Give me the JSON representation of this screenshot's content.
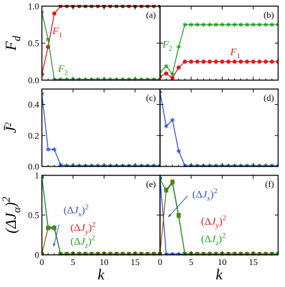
{
  "colors": {
    "red": "#e8141a",
    "green": "#1e9e1e",
    "blue": "#2a4fe0",
    "olive": "#8a6414"
  },
  "chart_data": [
    {
      "type": "line",
      "panel_label": "(a)",
      "ylabel": "F_d",
      "xlabel": "",
      "xlim": [
        0,
        19
      ],
      "ylim": [
        0,
        1.0
      ],
      "xticks": [
        0,
        5,
        10,
        15
      ],
      "yticks": [
        0.0,
        0.5,
        1.0
      ],
      "ytick_labels": [
        "0.0",
        "0.5",
        "1.0"
      ],
      "x": [
        0,
        1,
        2,
        3,
        4,
        5,
        6,
        7,
        8,
        9,
        10,
        11,
        12,
        13,
        14,
        15,
        16,
        17,
        18,
        19
      ],
      "series": [
        {
          "label_text": "F_1",
          "color": "red",
          "marker": "circle",
          "values": [
            0.08,
            0.45,
            0.9,
            1,
            1,
            1,
            1,
            1,
            1,
            1,
            1,
            1,
            1,
            1,
            1,
            1,
            1,
            1,
            1,
            1
          ]
        },
        {
          "label_text": "F_2",
          "color": "green",
          "marker": "star",
          "values": [
            0.92,
            0.55,
            0.01,
            0.01,
            0.01,
            0.01,
            0.01,
            0.01,
            0.01,
            0.01,
            0.01,
            0.01,
            0.01,
            0.01,
            0.01,
            0.01,
            0.01,
            0.01,
            0.01,
            0.01
          ]
        }
      ],
      "annotations": [
        {
          "text": "F_1",
          "color": "red",
          "x": 1.7,
          "y": 0.62
        },
        {
          "text": "F_2",
          "color": "green",
          "x": 2.6,
          "y": 0.11
        }
      ]
    },
    {
      "type": "line",
      "panel_label": "(b)",
      "ylabel": "",
      "xlabel": "",
      "xlim": [
        0,
        19
      ],
      "ylim": [
        0,
        1.0
      ],
      "xticks": [
        0,
        5,
        10,
        15
      ],
      "yticks": [
        0.0,
        0.5,
        1.0
      ],
      "ytick_labels": [],
      "x": [
        0,
        1,
        2,
        3,
        4,
        5,
        6,
        7,
        8,
        9,
        10,
        11,
        12,
        13,
        14,
        15,
        16,
        17,
        18,
        19
      ],
      "series": [
        {
          "label_text": "F_1",
          "color": "red",
          "marker": "circle",
          "values": [
            0.05,
            0.09,
            0.03,
            0.17,
            0.25,
            0.25,
            0.25,
            0.25,
            0.25,
            0.25,
            0.25,
            0.25,
            0.25,
            0.25,
            0.25,
            0.25,
            0.25,
            0.25,
            0.25,
            0.25
          ]
        },
        {
          "label_text": "F_2",
          "color": "green",
          "marker": "star",
          "values": [
            0.11,
            0.19,
            0.08,
            0.45,
            0.75,
            0.75,
            0.75,
            0.75,
            0.75,
            0.75,
            0.75,
            0.75,
            0.75,
            0.75,
            0.75,
            0.75,
            0.75,
            0.75,
            0.75,
            0.75
          ]
        }
      ],
      "annotations": [
        {
          "text": "F_2",
          "color": "green",
          "x": 0.4,
          "y": 0.44
        },
        {
          "text": "F_1",
          "color": "red",
          "x": 11.3,
          "y": 0.34
        }
      ]
    },
    {
      "type": "line",
      "panel_label": "(c)",
      "ylabel": "J̄²",
      "xlabel": "",
      "xlim": [
        0,
        19
      ],
      "ylim": [
        0,
        0.5
      ],
      "xticks": [
        0,
        5,
        10,
        15
      ],
      "yticks": [
        0.0,
        0.2,
        0.4
      ],
      "ytick_labels": [
        "0.0",
        "0.2",
        "0.4"
      ],
      "x": [
        0,
        1,
        2,
        3,
        4,
        5,
        6,
        7,
        8,
        9,
        10,
        11,
        12,
        13,
        14,
        15,
        16,
        17,
        18,
        19
      ],
      "series": [
        {
          "color": "blue",
          "marker": "star",
          "values": [
            0.47,
            0.11,
            0.11,
            0.01,
            0.005,
            0.005,
            0.005,
            0.005,
            0.005,
            0.005,
            0.005,
            0.005,
            0.005,
            0.005,
            0.005,
            0.005,
            0.005,
            0.005,
            0.005,
            0.005
          ]
        }
      ],
      "annotations": []
    },
    {
      "type": "line",
      "panel_label": "(d)",
      "ylabel": "",
      "xlabel": "",
      "xlim": [
        0,
        19
      ],
      "ylim": [
        0,
        0.5
      ],
      "xticks": [
        0,
        5,
        10,
        15
      ],
      "yticks": [
        0.0,
        0.2,
        0.4
      ],
      "ytick_labels": [],
      "x": [
        0,
        1,
        2,
        3,
        4,
        5,
        6,
        7,
        8,
        9,
        10,
        11,
        12,
        13,
        14,
        15,
        16,
        17,
        18,
        19
      ],
      "series": [
        {
          "color": "blue",
          "marker": "star",
          "values": [
            0.48,
            0.26,
            0.3,
            0.1,
            0.005,
            0.005,
            0.005,
            0.005,
            0.005,
            0.005,
            0.005,
            0.005,
            0.005,
            0.005,
            0.005,
            0.005,
            0.005,
            0.005,
            0.005,
            0.005
          ]
        }
      ],
      "annotations": []
    },
    {
      "type": "line",
      "panel_label": "(e)",
      "ylabel": "(ΔJ_α)²",
      "xlabel": "k",
      "xlim": [
        0,
        19
      ],
      "ylim": [
        0,
        1.0
      ],
      "xticks": [
        0,
        5,
        10,
        15
      ],
      "yticks": [
        0,
        0.5,
        1
      ],
      "ytick_labels": [
        "0",
        "0.5",
        "1"
      ],
      "x": [
        0,
        1,
        2,
        3,
        4,
        5,
        6,
        7,
        8,
        9,
        10,
        11,
        12,
        13,
        14,
        15,
        16,
        17,
        18,
        19
      ],
      "series": [
        {
          "label_text": "(ΔJ_x)²",
          "color": "blue",
          "marker": "star",
          "values": [
            0.98,
            0.33,
            0.33,
            0.01,
            0.01,
            0.01,
            0.01,
            0.01,
            0.01,
            0.01,
            0.01,
            0.01,
            0.01,
            0.01,
            0.01,
            0.01,
            0.01,
            0.01,
            0.01,
            0.01
          ]
        },
        {
          "label_text": "(ΔJ_y)²",
          "color": "olive",
          "marker": "square",
          "values": [
            0.01,
            0.34,
            0.34,
            0.01,
            0.01,
            0.01,
            0.01,
            0.01,
            0.01,
            0.01,
            0.01,
            0.01,
            0.01,
            0.01,
            0.01,
            0.01,
            0.01,
            0.01,
            0.01,
            0.01
          ]
        },
        {
          "label_text": "(ΔJ_z)²",
          "color": "green",
          "marker": "star",
          "values": [
            0.97,
            0.35,
            0.35,
            0.01,
            0.01,
            0.01,
            0.01,
            0.01,
            0.01,
            0.01,
            0.01,
            0.01,
            0.01,
            0.01,
            0.01,
            0.01,
            0.01,
            0.01,
            0.01,
            0.01
          ]
        }
      ],
      "annotations": [
        {
          "text": "(ΔJ_x)²",
          "color": "blue",
          "x": 3.5,
          "y": 0.52
        },
        {
          "text": "(ΔJ_y)²",
          "color": "red",
          "x": 4.6,
          "y": 0.3
        },
        {
          "text": "(ΔJ_z)²",
          "color": "green",
          "x": 4.6,
          "y": 0.13
        }
      ]
    },
    {
      "type": "line",
      "panel_label": "(f)",
      "ylabel": "",
      "xlabel": "k",
      "xlim": [
        0,
        19
      ],
      "ylim": [
        0,
        1.0
      ],
      "xticks": [
        0,
        5,
        10,
        15
      ],
      "yticks": [
        0,
        0.5,
        1
      ],
      "ytick_labels": [],
      "x": [
        0,
        1,
        2,
        3,
        4,
        5,
        6,
        7,
        8,
        9,
        10,
        11,
        12,
        13,
        14,
        15,
        16,
        17,
        18,
        19
      ],
      "series": [
        {
          "label_text": "(ΔJ_x)²",
          "color": "blue",
          "marker": "star",
          "values": [
            0.97,
            0.01,
            0.01,
            0.01,
            0.01,
            0.01,
            0.01,
            0.01,
            0.01,
            0.01,
            0.01,
            0.01,
            0.01,
            0.01,
            0.01,
            0.01,
            0.01,
            0.01,
            0.01,
            0.01
          ]
        },
        {
          "label_text": "(ΔJ_y)²",
          "color": "olive",
          "marker": "square",
          "values": [
            0.01,
            0.82,
            0.92,
            0.5,
            0.01,
            0.01,
            0.01,
            0.01,
            0.01,
            0.01,
            0.01,
            0.01,
            0.01,
            0.01,
            0.01,
            0.01,
            0.01,
            0.01,
            0.01,
            0.01
          ]
        },
        {
          "label_text": "(ΔJ_z)²",
          "color": "green",
          "marker": "star",
          "values": [
            0.96,
            0.8,
            0.9,
            0.48,
            0.01,
            0.01,
            0.01,
            0.01,
            0.01,
            0.01,
            0.01,
            0.01,
            0.01,
            0.01,
            0.01,
            0.01,
            0.01,
            0.01,
            0.01,
            0.01
          ]
        }
      ],
      "annotations": [
        {
          "text": "(ΔJ_x)²",
          "color": "blue",
          "x": 5.2,
          "y": 0.72
        },
        {
          "text": "(ΔJ_y)²",
          "color": "red",
          "x": 6.6,
          "y": 0.38
        },
        {
          "text": "(ΔJ_z)²",
          "color": "green",
          "x": 6.6,
          "y": 0.16
        }
      ]
    }
  ]
}
